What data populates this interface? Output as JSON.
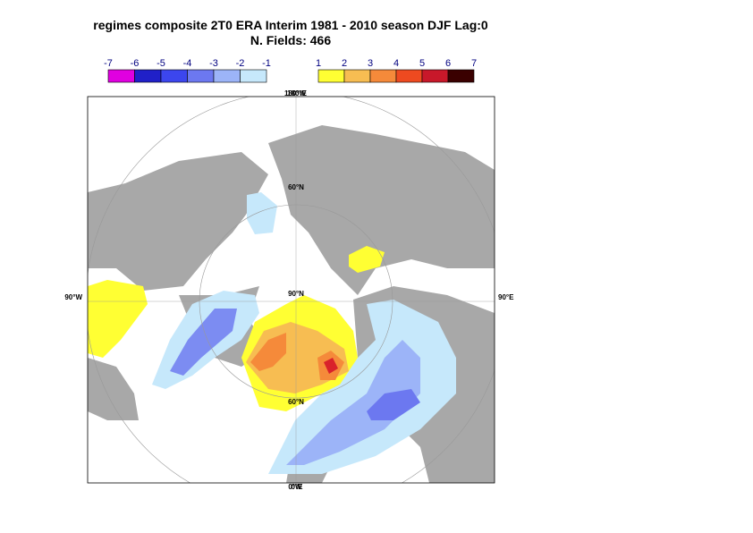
{
  "title": {
    "line1": "regimes composite 2T0 ERA Interim 1981 - 2010 season DJF Lag:0",
    "line2": "N. Fields: 466"
  },
  "colorbar": {
    "negative": [
      -7,
      -6,
      -5,
      -4,
      -3,
      -2,
      -1
    ],
    "positive": [
      1,
      2,
      3,
      4,
      5,
      6,
      7
    ]
  },
  "map_labels": {
    "top_west": "180°W",
    "top_east": "180°E",
    "left": "90°W",
    "right": "90°E",
    "bottom_west": "0°W",
    "bottom_east": "0°E",
    "lat_top": "60°N",
    "pole": "90°N",
    "lat_bottom": "60°N"
  }
}
